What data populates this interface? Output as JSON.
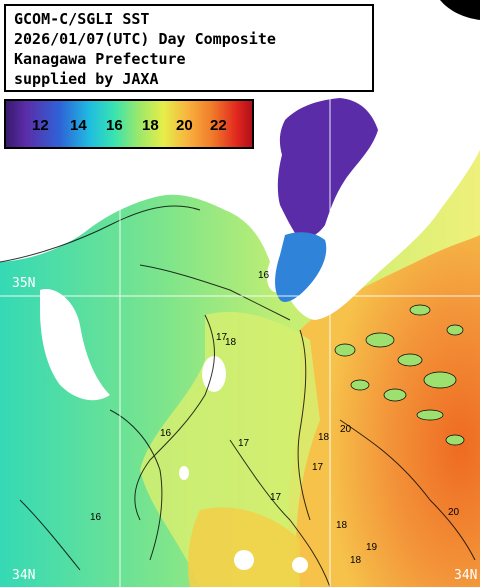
{
  "title": {
    "line1": "GCOM-C/SGLI SST",
    "line2": "2026/01/07(UTC) Day Composite",
    "line3": "Kanagawa Prefecture",
    "line4": "supplied by JAXA"
  },
  "legend": {
    "ticks": [
      "12",
      "14",
      "16",
      "18",
      "20",
      "22"
    ]
  },
  "grid_labels": {
    "lat_35_left": "35N",
    "lat_34_left": "34N",
    "lat_34_right": "34N"
  },
  "contour_labels": [
    "16",
    "17",
    "18",
    "16",
    "17",
    "18",
    "20",
    "17",
    "18",
    "19",
    "18",
    "17",
    "20",
    "16"
  ],
  "colors": {
    "land": "#ffffff",
    "cold": "#5b2ca8",
    "cool": "#39d6b0",
    "mild": "#9be86a",
    "warm": "#e8ee6a",
    "hot": "#f07a2a"
  }
}
